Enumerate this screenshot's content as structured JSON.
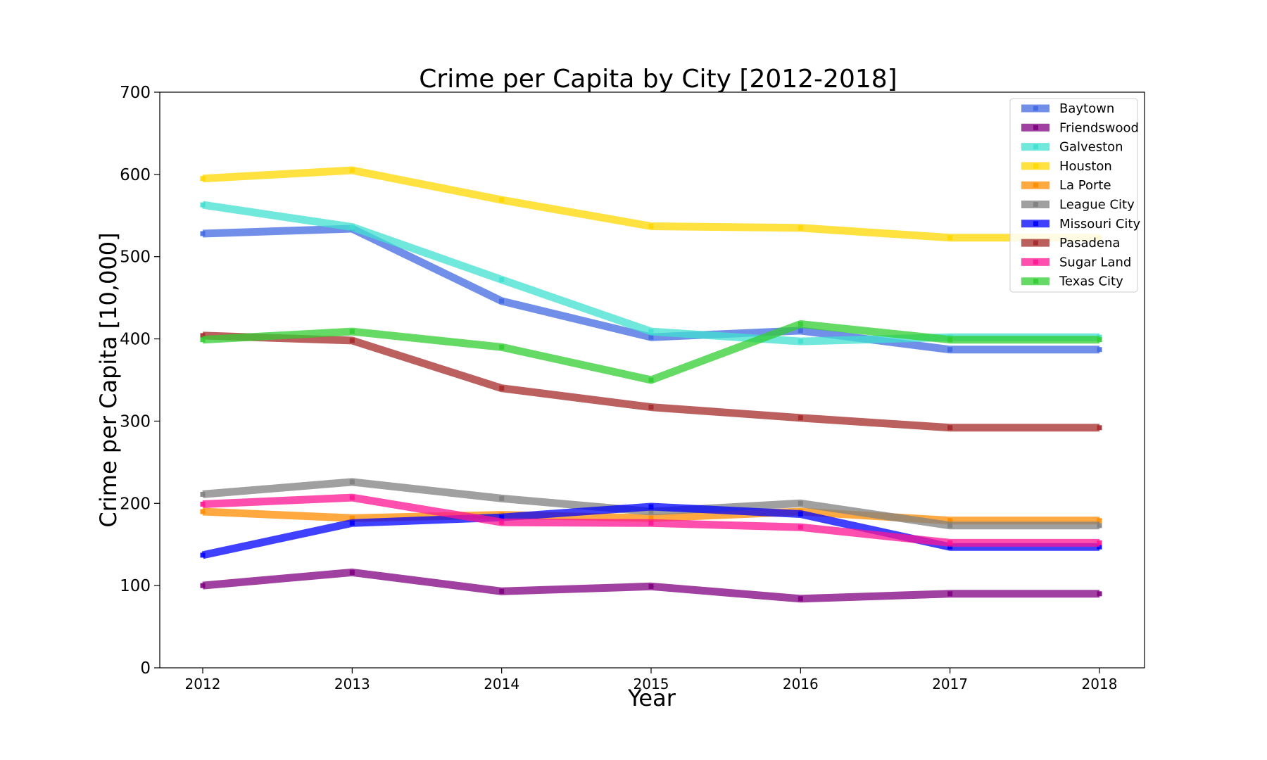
{
  "chart_data": {
    "type": "line",
    "title": "Crime per Capita by City [2012-2018]",
    "xlabel": "Year",
    "ylabel": "Crime per Capita [10,000]",
    "x": [
      "2012",
      "2013",
      "2014",
      "2015",
      "2016",
      "2017",
      "2018"
    ],
    "yticks": [
      "0",
      "100",
      "200",
      "300",
      "400",
      "500",
      "600",
      "700"
    ],
    "ylim": [
      0,
      700
    ],
    "grid": false,
    "legend_position": "top-right",
    "series": [
      {
        "name": "Baytown",
        "color": "#4169e1",
        "values": [
          528,
          534,
          446,
          402,
          410,
          387,
          387
        ]
      },
      {
        "name": "Friendswood",
        "color": "#800080",
        "values": [
          100,
          116,
          93,
          99,
          84,
          90,
          90
        ]
      },
      {
        "name": "Galveston",
        "color": "#40e0d0",
        "values": [
          563,
          536,
          472,
          409,
          397,
          402,
          402
        ]
      },
      {
        "name": "Houston",
        "color": "#ffd700",
        "values": [
          595,
          605,
          569,
          537,
          535,
          523,
          523
        ]
      },
      {
        "name": "La Porte",
        "color": "#ff8c00",
        "values": [
          190,
          182,
          186,
          182,
          190,
          179,
          179
        ]
      },
      {
        "name": "League City",
        "color": "#808080",
        "values": [
          211,
          226,
          206,
          190,
          200,
          173,
          173
        ]
      },
      {
        "name": "Missouri City",
        "color": "#0000ff",
        "values": [
          137,
          176,
          183,
          196,
          187,
          147,
          147
        ]
      },
      {
        "name": "Pasadena",
        "color": "#a52a2a",
        "values": [
          404,
          398,
          340,
          317,
          304,
          292,
          292
        ]
      },
      {
        "name": "Sugar Land",
        "color": "#ff1493",
        "values": [
          199,
          207,
          177,
          176,
          171,
          152,
          152
        ]
      },
      {
        "name": "Texas City",
        "color": "#32cd32",
        "values": [
          399,
          409,
          390,
          350,
          418,
          399,
          399
        ]
      }
    ]
  }
}
